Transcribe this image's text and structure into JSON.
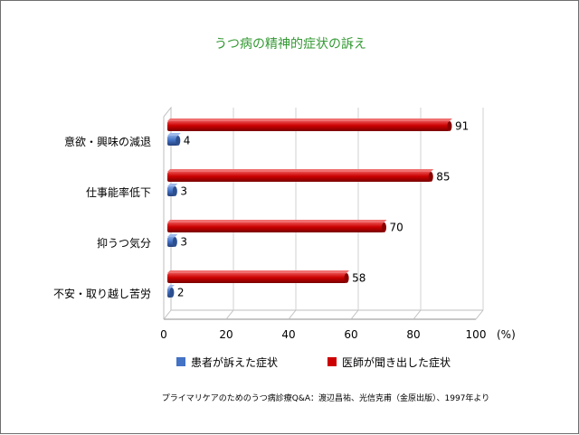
{
  "chart_data": {
    "type": "bar",
    "orientation": "horizontal",
    "title": "うつ病の精神的症状の訴え",
    "categories": [
      "意欲・興味の減退",
      "仕事能率低下",
      "抑うつ気分",
      "不安・取り越し苦労"
    ],
    "series": [
      {
        "name": "医師が聞き出した症状",
        "values": [
          91,
          85,
          70,
          58
        ],
        "color": "#cc0000"
      },
      {
        "name": "患者が訴えた症状",
        "values": [
          4,
          3,
          3,
          2
        ],
        "color": "#4472c4"
      }
    ],
    "xlim": [
      0,
      100
    ],
    "x_ticks": [
      0,
      20,
      40,
      60,
      80,
      100
    ],
    "x_unit": "(%)",
    "legend_order": [
      "患者が訴えた症状",
      "医師が聞き出した症状"
    ],
    "legend_position": "bottom",
    "title_color": "#339933",
    "source": "プライマリケアのためのうつ病診療Q&A：渡辺昌祐、光信克甫（金原出版）、1997年より"
  }
}
